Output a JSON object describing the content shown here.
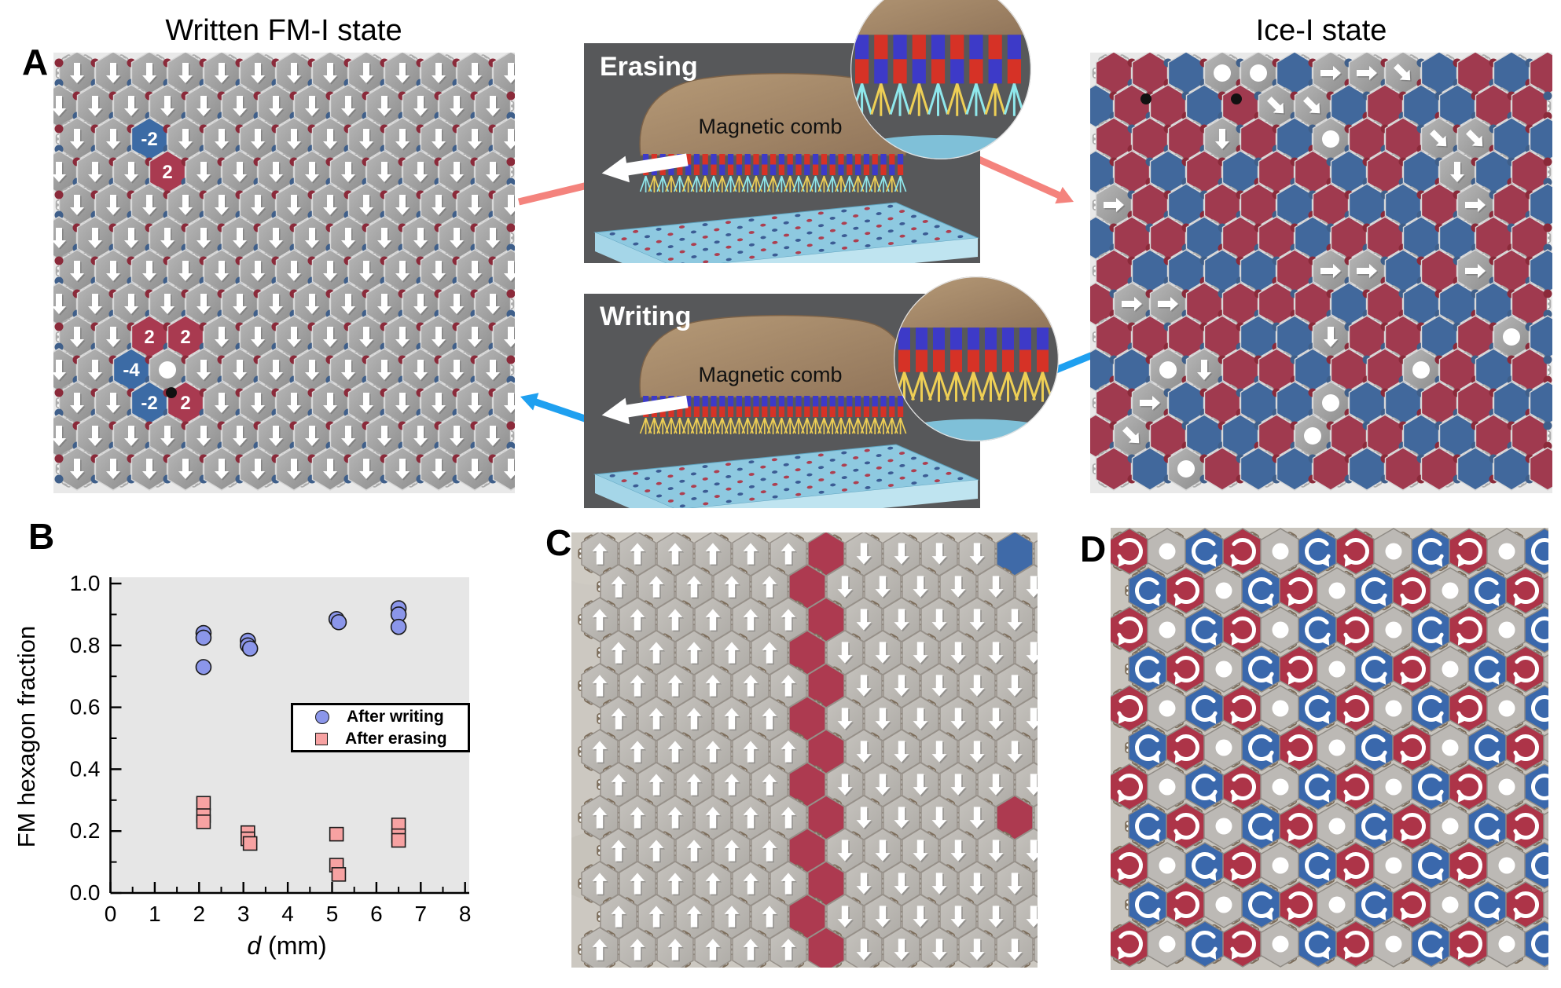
{
  "figure": {
    "panel_a_label": "A",
    "panel_b_label": "B",
    "panel_c_label": "C",
    "panel_d_label": "D",
    "fm_title": "Written FM-I state",
    "ice_title": "Ice-I state"
  },
  "middle": {
    "erasing": {
      "title": "Erasing",
      "comb_label": "Magnetic comb"
    },
    "writing": {
      "title": "Writing",
      "comb_label": "Magnetic comb"
    },
    "colors": {
      "panel_bg": "#57585a",
      "wood_light": "#b69a77",
      "wood_dark": "#91755a",
      "tooth_red": "#d63226",
      "tooth_blue": "#3d3ac8",
      "bristle_cyan": "#8fe8ec",
      "bristle_yellow": "#eecf55",
      "plate_top": "#8ec9e0",
      "plate_front": "#bfe4f0",
      "erase_arrow": "#f4837d",
      "write_arrow": "#1fa0f0",
      "white_arrow": "#ffffff"
    }
  },
  "chart_data": {
    "type": "scatter",
    "title": "",
    "xlabel": "d (mm)",
    "xlabel_var": "d",
    "xlabel_rest": " (mm)",
    "ylabel": "FM hexagon fraction",
    "xlim": [
      0,
      8
    ],
    "ylim": [
      0.0,
      1.0
    ],
    "xticks": [
      "0",
      "1",
      "2",
      "3",
      "4",
      "5",
      "6",
      "7",
      "8"
    ],
    "yticks": [
      "0.0",
      "0.2",
      "0.4",
      "0.6",
      "0.8",
      "1.0"
    ],
    "grid": false,
    "legend_position": "center-right",
    "legend": [
      {
        "label": "After writing",
        "marker": "circle",
        "color": "#8b96ea"
      },
      {
        "label": "After erasing",
        "marker": "square",
        "color": "#f7a2a2"
      }
    ],
    "series": [
      {
        "name": "After writing",
        "marker": "circle",
        "color": "#8b96ea",
        "points": [
          [
            2.1,
            0.84
          ],
          [
            2.1,
            0.825
          ],
          [
            2.1,
            0.73
          ],
          [
            3.1,
            0.815
          ],
          [
            3.1,
            0.8
          ],
          [
            3.15,
            0.79
          ],
          [
            5.1,
            0.885
          ],
          [
            5.15,
            0.875
          ],
          [
            6.5,
            0.92
          ],
          [
            6.5,
            0.9
          ],
          [
            6.5,
            0.86
          ]
        ]
      },
      {
        "name": "After erasing",
        "marker": "square",
        "color": "#f7a2a2",
        "points": [
          [
            2.1,
            0.29
          ],
          [
            2.1,
            0.25
          ],
          [
            2.1,
            0.23
          ],
          [
            3.1,
            0.195
          ],
          [
            3.1,
            0.175
          ],
          [
            3.15,
            0.16
          ],
          [
            5.1,
            0.19
          ],
          [
            5.1,
            0.09
          ],
          [
            5.15,
            0.06
          ],
          [
            6.5,
            0.22
          ],
          [
            6.5,
            0.185
          ],
          [
            6.5,
            0.17
          ]
        ]
      }
    ]
  },
  "lattices": {
    "fm": {
      "description": "ordered lattice, all hexagons gray with white down arrows",
      "rows": 13,
      "cols": 13,
      "specials": [
        {
          "r": 2,
          "c": 2,
          "kind": "blue",
          "label": "-2"
        },
        {
          "r": 3,
          "c": 3,
          "kind": "red",
          "label": "2"
        },
        {
          "r": 8,
          "c": 2,
          "kind": "red",
          "label": "2"
        },
        {
          "r": 8,
          "c": 3,
          "kind": "red",
          "label": "2"
        },
        {
          "r": 9,
          "c": 2,
          "kind": "blue",
          "label": "-4"
        },
        {
          "r": 9,
          "c": 3,
          "kind": "dot",
          "label": ""
        },
        {
          "r": 10,
          "c": 2,
          "kind": "blue",
          "label": "-2"
        },
        {
          "r": 10,
          "c": 3,
          "kind": "red",
          "label": "2"
        }
      ],
      "black_dots": [
        [
          218,
          500
        ]
      ]
    },
    "ice": {
      "description": "disordered ice state: r=red hexagon, b=blue hexagon, o=gray hexagon with white dot, e=gray arrow right, s=gray arrow down, d=gray arrow diagonal",
      "grid": [
        "rrboobeedbrbr",
        "brrbrddbrbbrr",
        "rrrsrborrddbb",
        "brbrbrrbrbsbr",
        "erbrrbrbbrerb",
        "brrbrrbrrbbrr",
        "rbbbbreebrerb",
        "reerrrrbrbbbr",
        "rrrrbbsrrbrob",
        "bbosrrbrrorbr",
        "rebrbbobbrrbb",
        "rdrbbrorrbbrr",
        "rborbbrbrrbbr"
      ],
      "black_dots": [
        [
          1458,
          126
        ],
        [
          1573,
          126
        ]
      ]
    },
    "c": {
      "description": "photo lattice: up-arrow domain left, down-arrow domain right, red domain-wall column",
      "rows": 13,
      "cols": 12,
      "wall_col_even": 6,
      "wall_col_odd": 5,
      "blue_cells": [
        [
          0,
          11
        ]
      ],
      "red_cells": [
        [
          8,
          11
        ]
      ]
    },
    "d": {
      "description": "vortex crystal: r=red clockwise vortex, g=gray with dot, b=blue counterclockwise vortex",
      "grid": [
        "rgbrgbrgbrgb",
        "brgbrgbrgbrg",
        "rgbrgbrgbrgb",
        "brgbrgbrgbrg",
        "rgbrgbrgbrgb",
        "brgbrgbrgbrg",
        "rgbrgbrgbrgb",
        "brgbrgbrgbrg",
        "rgbrgbrgbrgb",
        "brgbrgbrgbrg",
        "rgbrgbrgbrgb"
      ]
    }
  },
  "palette": {
    "fm_bg": "#e9e9e9",
    "hex_light": "#b7b7b7",
    "hex_dark": "#8d8d8d",
    "hex_stroke": "#d8d8d8",
    "pill_gray": "#ababab",
    "vertex_red": "#8b2a3a",
    "vertex_blue": "#3f5f8a",
    "special_red": "#a93a50",
    "special_blue": "#3c6ba5",
    "ice_red": "#a03a4f",
    "ice_blue": "#41689c",
    "ice_gray": "#b5b5b5",
    "photo_bg_c": "#ccc8c1",
    "photo_hex_c": "#bebcb7",
    "photo_hex_stroke": "#969089",
    "pill_brown": "#7d6e5c",
    "c_red": "#ad3a50",
    "c_blue": "#3f6aa8",
    "d_bg": "#c8c4bd",
    "d_red": "#ad3448",
    "d_blue": "#3a68ac",
    "d_gray": "#bcb9b5",
    "chart_bg": "#e6e6e6"
  }
}
